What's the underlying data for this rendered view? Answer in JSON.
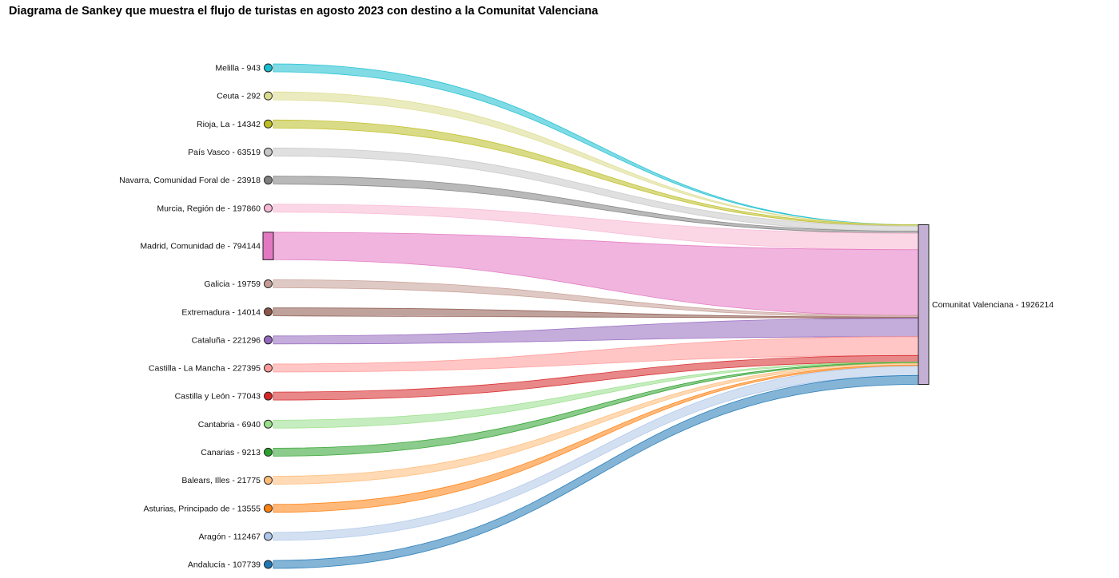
{
  "chart_data": {
    "type": "sankey",
    "title": "Diagrama de Sankey que muestra el flujo de turistas en agosto 2023 con destino a la Comunitat Valenciana",
    "target": {
      "name": "Comunitat Valenciana",
      "value": 1926214,
      "label": "Comunitat Valenciana - 1926214",
      "color": "#c5b0d5"
    },
    "sources": [
      {
        "name": "Melilla",
        "value": 943,
        "label": "Melilla - 943",
        "color": "#17becf"
      },
      {
        "name": "Ceuta",
        "value": 292,
        "label": "Ceuta - 292",
        "color": "#dbdb8d"
      },
      {
        "name": "Rioja, La",
        "value": 14342,
        "label": "Rioja, La - 14342",
        "color": "#bcbd22"
      },
      {
        "name": "País Vasco",
        "value": 63519,
        "label": "País Vasco - 63519",
        "color": "#c7c7c7"
      },
      {
        "name": "Navarra, Comunidad Foral de",
        "value": 23918,
        "label": "Navarra, Comunidad Foral de - 23918",
        "color": "#7f7f7f"
      },
      {
        "name": "Murcia, Región de",
        "value": 197860,
        "label": "Murcia, Región de - 197860",
        "color": "#f7b6d2"
      },
      {
        "name": "Madrid, Comunidad de",
        "value": 794144,
        "label": "Madrid, Comunidad de - 794144",
        "color": "#e377c2"
      },
      {
        "name": "Galicia",
        "value": 19759,
        "label": "Galicia - 19759",
        "color": "#c49c94"
      },
      {
        "name": "Extremadura",
        "value": 14014,
        "label": "Extremadura - 14014",
        "color": "#8c564b"
      },
      {
        "name": "Cataluña",
        "value": 221296,
        "label": "Cataluña - 221296",
        "color": "#9467bd"
      },
      {
        "name": "Castilla - La Mancha",
        "value": 227395,
        "label": "Castilla - La Mancha - 227395",
        "color": "#ff9896"
      },
      {
        "name": "Castilla y León",
        "value": 77043,
        "label": "Castilla y León - 77043",
        "color": "#d62728"
      },
      {
        "name": "Cantabria",
        "value": 6940,
        "label": "Cantabria - 6940",
        "color": "#98df8a"
      },
      {
        "name": "Canarias",
        "value": 9213,
        "label": "Canarias - 9213",
        "color": "#2ca02c"
      },
      {
        "name": "Balears, Illes",
        "value": 21775,
        "label": "Balears, Illes - 21775",
        "color": "#ffbb78"
      },
      {
        "name": "Asturias, Principado de",
        "value": 13555,
        "label": "Asturias, Principado de - 13555",
        "color": "#ff7f0e"
      },
      {
        "name": "Aragón",
        "value": 112467,
        "label": "Aragón - 112467",
        "color": "#aec7e8"
      },
      {
        "name": "Andalucía",
        "value": 107739,
        "label": "Andalucía - 107739",
        "color": "#1f77b4"
      }
    ]
  }
}
